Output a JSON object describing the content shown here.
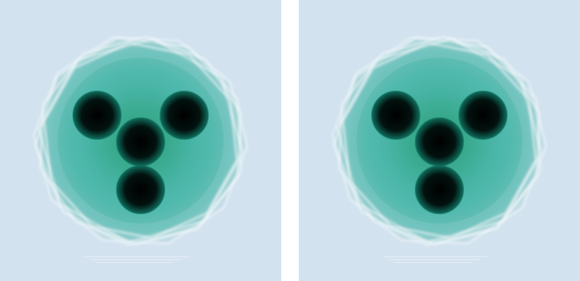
{
  "scene": {
    "background_color": "#d3e2ef",
    "gap_color": "#ffffff",
    "body_color": "#3fb3a4",
    "body_core_color": "#1f9a6c",
    "edge_color": "#f4fbff",
    "lobe_color": "#02120f",
    "lobe_rim_color": "#0e6b5a"
  },
  "panels": [
    {
      "name": "left-render",
      "description_shape": "decagonal-crystal-with-four-dark-lobes"
    },
    {
      "name": "right-render",
      "description_shape": "decagonal-crystal-with-four-dark-lobes"
    }
  ]
}
